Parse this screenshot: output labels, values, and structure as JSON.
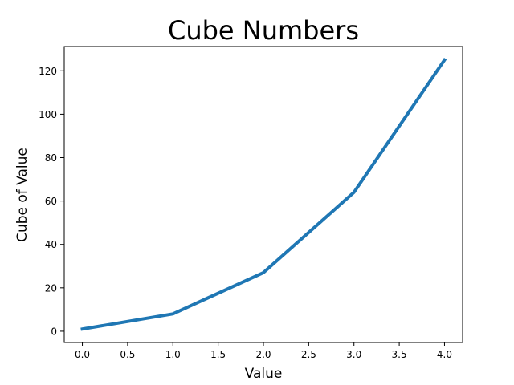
{
  "chart_data": {
    "type": "line",
    "title": "Cube Numbers",
    "xlabel": "Value",
    "ylabel": "Cube of Value",
    "x": [
      0,
      1,
      2,
      3,
      4
    ],
    "series": [
      {
        "values": [
          1,
          8,
          27,
          64,
          125
        ],
        "color": "#1f77b4"
      }
    ],
    "xlim": [
      -0.2,
      4.2
    ],
    "ylim": [
      -5.2,
      131.2
    ],
    "xticks": [
      0.0,
      0.5,
      1.0,
      1.5,
      2.0,
      2.5,
      3.0,
      3.5,
      4.0
    ],
    "xtick_labels": [
      "0.0",
      "0.5",
      "1.0",
      "1.5",
      "2.0",
      "2.5",
      "3.0",
      "3.5",
      "4.0"
    ],
    "yticks": [
      0,
      20,
      40,
      60,
      80,
      100,
      120
    ],
    "ytick_labels": [
      "0",
      "20",
      "40",
      "60",
      "80",
      "100",
      "120"
    ],
    "grid": false,
    "legend": false
  }
}
